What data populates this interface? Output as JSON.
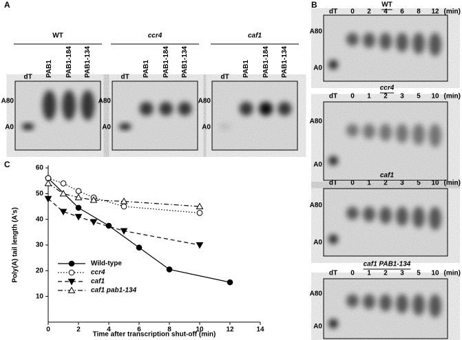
{
  "panel_a": {
    "label": "A",
    "groups": [
      {
        "title": "WT",
        "lanes": [
          "dT",
          "PAB1",
          "PAB1-184",
          "PAB1-134"
        ],
        "markers": [
          "A80",
          "A0"
        ]
      },
      {
        "title": "ccr4",
        "lanes": [
          "dT",
          "PAB1",
          "PAB1-184",
          "PAB1-134"
        ],
        "markers": [
          "A80",
          "A0"
        ]
      },
      {
        "title": "caf1",
        "lanes": [
          "dT",
          "PAB1",
          "PAB1-184",
          "PAB1-134"
        ],
        "markers": [
          "A80",
          "A0"
        ]
      }
    ]
  },
  "panel_b": {
    "label": "B",
    "gels": [
      {
        "title": "WT",
        "lanes": [
          "dT",
          "0",
          "2",
          "4",
          "6",
          "8",
          "12"
        ],
        "unit": "(min)",
        "markers": [
          "A80",
          "A0"
        ]
      },
      {
        "title": "ccr4",
        "lanes": [
          "dT",
          "0",
          "1",
          "2",
          "3",
          "5",
          "10"
        ],
        "unit": "(min)",
        "markers": [
          "A80",
          "A0"
        ]
      },
      {
        "title": "caf1",
        "lanes": [
          "dT",
          "0",
          "1",
          "2",
          "3",
          "5",
          "10"
        ],
        "unit": "(min)",
        "markers": [
          "A80",
          "A0"
        ]
      },
      {
        "title": "caf1 PAB1-134",
        "lanes": [
          "dT",
          "0",
          "1",
          "2",
          "3",
          "5",
          "10"
        ],
        "unit": "(min)",
        "markers": [
          "A80",
          "A0"
        ]
      }
    ]
  },
  "chart_data": {
    "type": "line",
    "panel_label": "C",
    "x_label": "Time after transcription shut-off (min)",
    "y_label": "Poly(A) tail length (A's)",
    "xlim": [
      0,
      14
    ],
    "ylim": [
      0,
      60
    ],
    "xticks": [
      0,
      2,
      4,
      6,
      8,
      10,
      12,
      14
    ],
    "yticks": [
      10,
      20,
      30,
      40,
      50,
      60
    ],
    "legend": "lower left",
    "series": [
      {
        "name": "Wild-type",
        "color": "#000000",
        "dash": "solid",
        "marker": "filled-circle",
        "x": [
          0,
          2,
          4,
          6,
          8,
          12
        ],
        "values": [
          56,
          44.5,
          37.5,
          29,
          20.5,
          15.5
        ]
      },
      {
        "name": "ccr4",
        "color": "#000000",
        "dash": "dotted",
        "marker": "open-circle",
        "x": [
          0,
          1,
          2,
          3,
          5,
          10
        ],
        "values": [
          56,
          54,
          51,
          48.5,
          45,
          42.5
        ]
      },
      {
        "name": "caf1",
        "color": "#000000",
        "dash": "dashed",
        "marker": "filled-triangle-down",
        "x": [
          0,
          1,
          2,
          3,
          5,
          10
        ],
        "values": [
          48,
          43,
          41,
          39,
          35.5,
          30
        ]
      },
      {
        "name": "caf1 pab1-134",
        "color": "#000000",
        "dash": "dash-dot",
        "marker": "open-triangle-up",
        "x": [
          0,
          1,
          2,
          3,
          5,
          10
        ],
        "values": [
          54,
          50,
          48.5,
          47.5,
          47,
          45
        ]
      }
    ]
  }
}
